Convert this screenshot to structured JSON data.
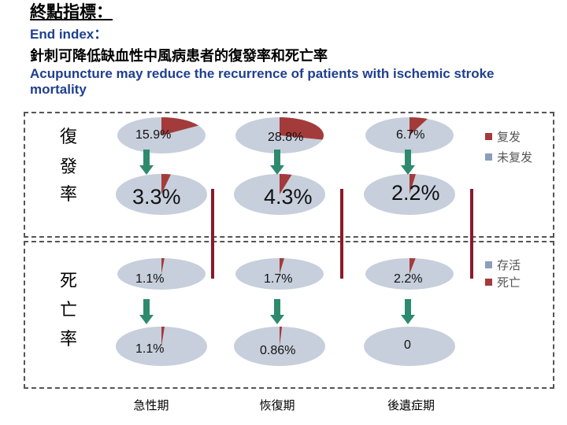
{
  "header": {
    "title_cn": "終點指標：",
    "title_en": "End index：",
    "subtitle_cn": "針刺可降低缺血性中風病患者的復發率和死亡率",
    "subtitle_en": "Acupuncture may reduce the recurrence of patients with ischemic stroke mortality"
  },
  "row_labels": {
    "recurrence": [
      "復",
      "發",
      "率"
    ],
    "mortality": [
      "死",
      "亡",
      "率"
    ]
  },
  "phases": [
    "急性期",
    "恢復期",
    "後遺症期"
  ],
  "legend_recurrence": [
    {
      "label": "复发",
      "color": "#a33b3b"
    },
    {
      "label": "未复发",
      "color": "#8d9dba"
    }
  ],
  "legend_mortality": [
    {
      "label": "存活",
      "color": "#8d9dba"
    },
    {
      "label": "死亡",
      "color": "#a33b3b"
    }
  ],
  "colors": {
    "event": "#a33b3b",
    "other": "#c7cfdc",
    "arrow": "#2e8a6e",
    "divider": "#8b1a2a"
  },
  "chart_data": {
    "type": "pie",
    "title": "針刺可降低缺血性中風病患者的復發率和死亡率",
    "phases": [
      "急性期",
      "恢復期",
      "後遺症期"
    ],
    "recurrence": {
      "before": [
        {
          "label": "15.9%",
          "value": 15.9
        },
        {
          "label": "28.8%",
          "value": 28.8
        },
        {
          "label": "6.7%",
          "value": 6.7
        }
      ],
      "after": [
        {
          "label": "3.3%",
          "value": 3.3
        },
        {
          "label": "4.3%",
          "value": 4.3
        },
        {
          "label": "2.2%",
          "value": 2.2
        }
      ]
    },
    "mortality": {
      "before": [
        {
          "label": "1.1%",
          "value": 1.1
        },
        {
          "label": "1.7%",
          "value": 1.7
        },
        {
          "label": "2.2%",
          "value": 2.2
        }
      ],
      "after": [
        {
          "label": "1.1%",
          "value": 1.1
        },
        {
          "label": "0.86%",
          "value": 0.86
        },
        {
          "label": "0",
          "value": 0
        }
      ]
    }
  }
}
